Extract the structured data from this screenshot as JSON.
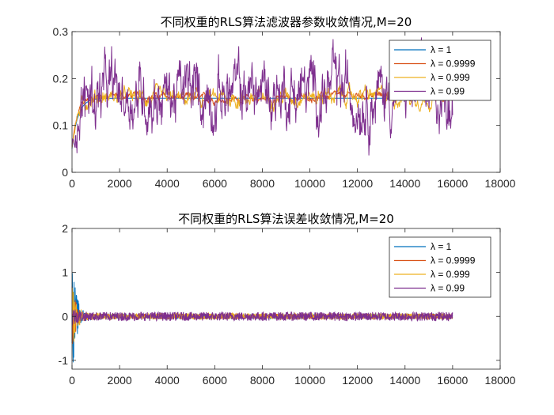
{
  "chart_data": [
    {
      "type": "line",
      "title": "不同权重的RLS算法滤波器参数收敛情况,M=20",
      "xlabel": "",
      "ylabel": "",
      "xlim": [
        0,
        18000
      ],
      "ylim": [
        0,
        0.3
      ],
      "xticks": [
        0,
        2000,
        4000,
        6000,
        8000,
        10000,
        12000,
        14000,
        16000,
        18000
      ],
      "xtick_labels": [
        "0",
        "2000",
        "4000",
        "6000",
        "8000",
        "10000",
        "12000",
        "14000",
        "16000",
        "18000"
      ],
      "yticks": [
        0,
        0.1,
        0.2,
        0.3
      ],
      "ytick_labels": [
        "0",
        "0.1",
        "0.2",
        "0.3"
      ],
      "legend_position": "top-right",
      "n_samples": 16000,
      "series": [
        {
          "name": "λ = 1",
          "color": "#0072BD",
          "start": 0.05,
          "level": 0.158,
          "noise": 0.0
        },
        {
          "name": "λ = 0.9999",
          "color": "#D95319",
          "start": 0.05,
          "level": 0.16,
          "noise": 0.008
        },
        {
          "name": "λ = 0.999",
          "color": "#EDB120",
          "start": 0.05,
          "level": 0.16,
          "noise": 0.018
        },
        {
          "name": "λ = 0.99",
          "color": "#7E2F8E",
          "start": 0.05,
          "level": 0.17,
          "noise": 0.07
        }
      ]
    },
    {
      "type": "line",
      "title": "不同权重的RLS算法误差收敛情况,M=20",
      "xlabel": "",
      "ylabel": "",
      "xlim": [
        0,
        18000
      ],
      "ylim": [
        -1.2,
        2
      ],
      "xticks": [
        0,
        2000,
        4000,
        6000,
        8000,
        10000,
        12000,
        14000,
        16000,
        18000
      ],
      "xtick_labels": [
        "0",
        "2000",
        "4000",
        "6000",
        "8000",
        "10000",
        "12000",
        "14000",
        "16000",
        "18000"
      ],
      "yticks": [
        -1,
        0,
        1,
        2
      ],
      "ytick_labels": [
        "-1",
        "0",
        "1",
        "2"
      ],
      "legend_position": "top-right",
      "n_samples": 16000,
      "series": [
        {
          "name": "λ = 1",
          "color": "#0072BD",
          "initial_amplitude": 1.4,
          "steady_amplitude": 0.05
        },
        {
          "name": "λ = 0.9999",
          "color": "#D95319",
          "initial_amplitude": 0.8,
          "steady_amplitude": 0.06
        },
        {
          "name": "λ = 0.999",
          "color": "#EDB120",
          "initial_amplitude": 0.9,
          "steady_amplitude": 0.07
        },
        {
          "name": "λ = 0.99",
          "color": "#7E2F8E",
          "initial_amplitude": 0.3,
          "steady_amplitude": 0.1
        }
      ]
    }
  ]
}
